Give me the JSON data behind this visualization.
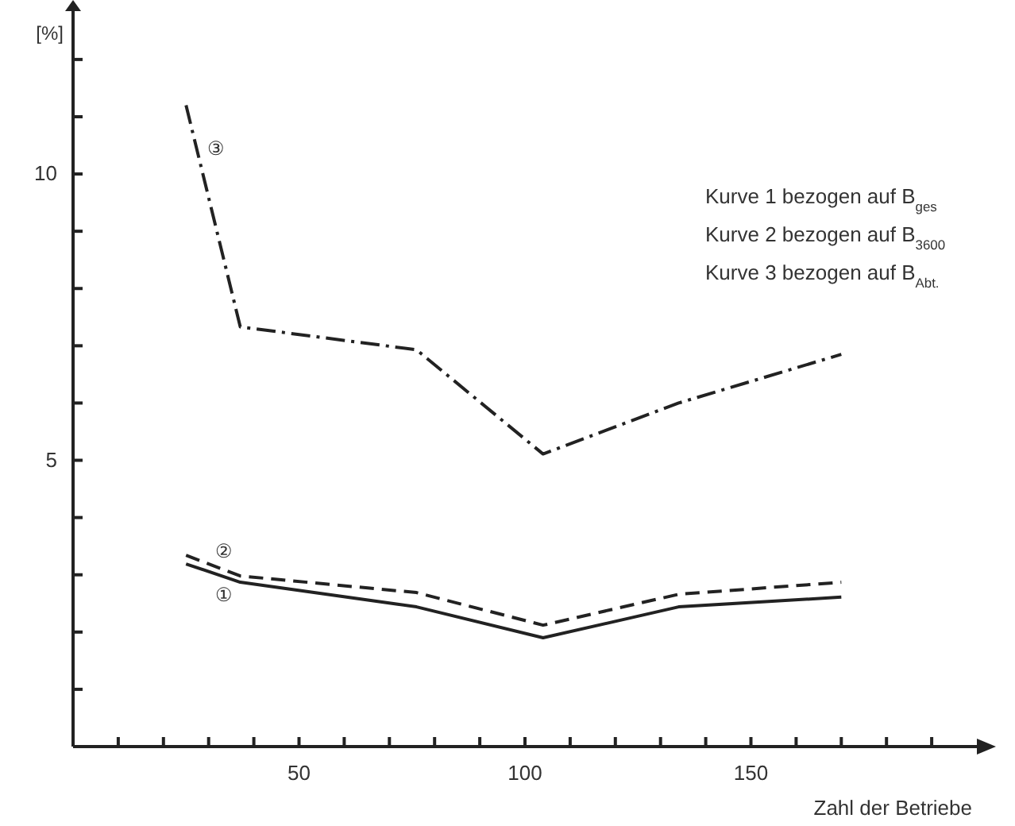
{
  "chart_data": {
    "type": "line",
    "xlabel": "Zahl der Betriebe",
    "ylabel": "[%]",
    "xlim": [
      0,
      200
    ],
    "ylim": [
      0,
      12.9
    ],
    "xticks": [
      {
        "value": 10,
        "label": null
      },
      {
        "value": 20,
        "label": null
      },
      {
        "value": 30,
        "label": null
      },
      {
        "value": 40,
        "label": null
      },
      50,
      {
        "value": 60,
        "label": null
      },
      {
        "value": 70,
        "label": null
      },
      {
        "value": 80,
        "label": null
      },
      {
        "value": 90,
        "label": null
      },
      100,
      {
        "value": 110,
        "label": null
      },
      {
        "value": 120,
        "label": null
      },
      {
        "value": 130,
        "label": null
      },
      {
        "value": 140,
        "label": null
      },
      150,
      {
        "value": 160,
        "label": null
      },
      {
        "value": 170,
        "label": null
      },
      {
        "value": 180,
        "label": null
      },
      {
        "value": 190,
        "label": null
      }
    ],
    "yticks": [
      {
        "value": 1,
        "label": null
      },
      {
        "value": 2,
        "label": null
      },
      {
        "value": 3,
        "label": null
      },
      {
        "value": 4,
        "label": null
      },
      5,
      {
        "value": 6,
        "label": null
      },
      {
        "value": 7,
        "label": null
      },
      {
        "value": 8,
        "label": null
      },
      {
        "value": 9,
        "label": null
      },
      10,
      {
        "value": 11,
        "label": null
      },
      {
        "value": 12,
        "label": null
      }
    ],
    "grid": false,
    "marker": "none",
    "series": [
      {
        "name": "①",
        "color": "#222222",
        "line_style": "solid",
        "x": [
          25,
          37,
          76,
          104,
          134,
          170
        ],
        "values": [
          3.19,
          2.87,
          2.44,
          1.9,
          2.44,
          2.61
        ]
      },
      {
        "name": "②",
        "color": "#222222",
        "line_style": "dashed",
        "x": [
          25,
          37,
          76,
          104,
          134,
          170
        ],
        "values": [
          3.34,
          2.98,
          2.69,
          2.12,
          2.66,
          2.87
        ]
      },
      {
        "name": "③",
        "color": "#222222",
        "line_style": "dashdot",
        "x": [
          25,
          37,
          76,
          104,
          134,
          170
        ],
        "values": [
          11.2,
          7.33,
          6.93,
          5.11,
          6.0,
          6.85
        ]
      }
    ],
    "annotations": [
      "Kurve 1 bezogen auf B$_{ges}$",
      "Kurve 2 bezogen auf B$_{3600}$",
      "Kurve 3 bezogen auf B$_{Abt.}$"
    ]
  }
}
